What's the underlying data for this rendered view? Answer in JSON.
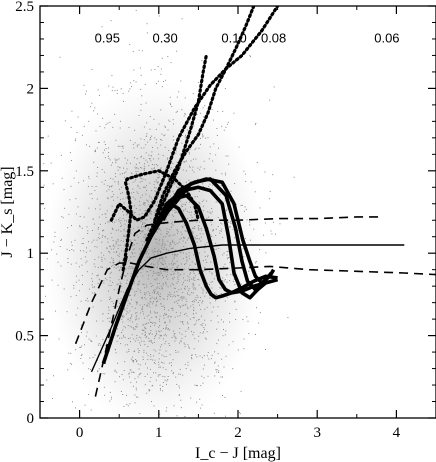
{
  "chart_data": {
    "type": "line",
    "xlabel": "I_c − J [mag]",
    "ylabel": "J − K_s [mag]",
    "xlim": [
      -0.5,
      4.5
    ],
    "ylim": [
      0,
      2.5
    ],
    "x_ticks": [
      "0",
      "1",
      "2",
      "3",
      "4"
    ],
    "y_ticks": [
      "0",
      "0.5",
      "1",
      "1.5",
      "2",
      "2.5"
    ],
    "grid": false,
    "legend": "none",
    "annotations": [
      {
        "text": "0.95",
        "x": 0.35,
        "y": 2.28
      },
      {
        "text": "0.30",
        "x": 1.08,
        "y": 2.28
      },
      {
        "text": "0.10",
        "x": 1.95,
        "y": 2.28
      },
      {
        "text": "0.08",
        "x": 2.45,
        "y": 2.28
      },
      {
        "text": "0.06",
        "x": 3.88,
        "y": 2.28
      }
    ],
    "scatter": {
      "description_only": false,
      "center": [
        0.95,
        1.05
      ],
      "color": "#8c8c8c"
    },
    "series": [
      {
        "style": "thick-solid",
        "x": [
          0.3,
          0.45,
          0.6,
          0.75,
          0.9,
          1.05,
          1.2
        ],
        "y": [
          0.33,
          0.55,
          0.75,
          0.95,
          1.1,
          1.22,
          1.3
        ]
      },
      {
        "style": "thick-solid",
        "x": [
          0.9,
          1.1,
          1.3,
          1.5,
          1.65,
          1.8,
          1.88,
          1.95,
          2.05,
          2.15,
          2.25,
          2.35
        ],
        "y": [
          1.1,
          1.3,
          1.38,
          1.4,
          1.38,
          1.3,
          1.1,
          0.88,
          0.76,
          0.73,
          0.78,
          0.82
        ]
      },
      {
        "style": "thick-solid",
        "x": [
          1.05,
          1.25,
          1.45,
          1.65,
          1.85,
          1.97,
          2.05,
          2.12,
          2.22,
          2.32,
          2.42
        ],
        "y": [
          1.22,
          1.38,
          1.43,
          1.45,
          1.35,
          1.15,
          0.95,
          0.83,
          0.78,
          0.82,
          0.88
        ]
      },
      {
        "style": "thick-solid",
        "x": [
          1.2,
          1.4,
          1.6,
          1.8,
          1.95,
          2.06,
          2.15,
          2.22,
          2.3,
          2.4,
          2.45
        ],
        "y": [
          1.3,
          1.42,
          1.45,
          1.43,
          1.3,
          1.08,
          0.95,
          0.86,
          0.82,
          0.86,
          0.9
        ]
      },
      {
        "style": "thick-solid",
        "x": [
          0.95,
          1.05,
          1.15,
          1.25,
          1.35,
          1.45,
          1.52,
          1.6,
          1.66,
          1.72,
          1.8,
          1.92,
          2.05,
          2.2,
          2.35,
          2.5
        ],
        "y": [
          1.15,
          1.25,
          1.3,
          1.27,
          1.18,
          1.05,
          0.9,
          0.8,
          0.75,
          0.73,
          0.74,
          0.76,
          0.79,
          0.83,
          0.86,
          0.85
        ]
      },
      {
        "style": "thick-solid",
        "x": [
          1.05,
          1.2,
          1.35,
          1.5,
          1.6,
          1.7,
          1.76,
          1.84,
          1.92,
          2.05,
          2.2,
          2.35,
          2.5
        ],
        "y": [
          1.2,
          1.33,
          1.35,
          1.28,
          1.15,
          0.98,
          0.84,
          0.78,
          0.76,
          0.77,
          0.8,
          0.82,
          0.84
        ]
      },
      {
        "style": "thin-solid",
        "x": [
          0.15,
          0.4,
          0.6,
          0.75,
          0.9,
          1.1,
          1.4,
          1.8,
          2.3,
          3.0,
          3.6,
          4.1
        ],
        "y": [
          0.28,
          0.55,
          0.78,
          0.9,
          0.97,
          1.0,
          1.03,
          1.05,
          1.05,
          1.05,
          1.05,
          1.05
        ]
      },
      {
        "style": "dashed",
        "x": [
          0.2,
          0.35,
          0.5,
          0.6,
          0.7,
          0.85,
          1.0,
          1.2,
          1.5,
          2.0,
          2.5,
          3.0,
          3.5,
          3.8
        ],
        "y": [
          0.13,
          0.45,
          0.78,
          0.98,
          1.12,
          1.17,
          1.18,
          1.19,
          1.2,
          1.2,
          1.21,
          1.21,
          1.22,
          1.22
        ]
      },
      {
        "style": "dashed",
        "x": [
          -0.05,
          0.15,
          0.35,
          0.5,
          0.65,
          0.85,
          1.1,
          1.5,
          2.0,
          2.4,
          2.9,
          3.5,
          4.1,
          4.5
        ],
        "y": [
          0.45,
          0.7,
          0.9,
          0.94,
          0.94,
          0.92,
          0.9,
          0.9,
          0.91,
          0.92,
          0.9,
          0.89,
          0.88,
          0.87
        ]
      },
      {
        "style": "dotted",
        "x": [
          0.55,
          0.6,
          0.65,
          0.62,
          0.58,
          0.6,
          0.8,
          1.0,
          1.2,
          1.35,
          1.45,
          1.5
        ],
        "y": [
          0.9,
          1.05,
          1.25,
          1.35,
          1.43,
          1.45,
          1.48,
          1.5,
          1.45,
          1.38,
          1.3,
          1.2
        ]
      },
      {
        "style": "dotted",
        "x": [
          0.4,
          0.5,
          0.62,
          0.72,
          0.82,
          0.95,
          1.1,
          1.25,
          1.45,
          1.65,
          1.85,
          2.05,
          2.3,
          2.5
        ],
        "y": [
          1.2,
          1.3,
          1.25,
          1.2,
          1.22,
          1.32,
          1.5,
          1.7,
          1.88,
          2.02,
          2.12,
          2.2,
          2.35,
          2.5
        ]
      },
      {
        "style": "dotted",
        "x": [
          0.95,
          1.05,
          1.2,
          1.35,
          1.5,
          1.62,
          1.72,
          1.85,
          1.98,
          2.1,
          2.2
        ],
        "y": [
          1.2,
          1.35,
          1.5,
          1.62,
          1.72,
          1.85,
          2.0,
          2.12,
          2.25,
          2.38,
          2.5
        ]
      },
      {
        "style": "dotted",
        "x": [
          0.85,
          1.05,
          1.25,
          1.4,
          1.5,
          1.56,
          1.6
        ],
        "y": [
          1.08,
          1.3,
          1.52,
          1.75,
          1.92,
          2.1,
          2.2
        ]
      }
    ]
  }
}
